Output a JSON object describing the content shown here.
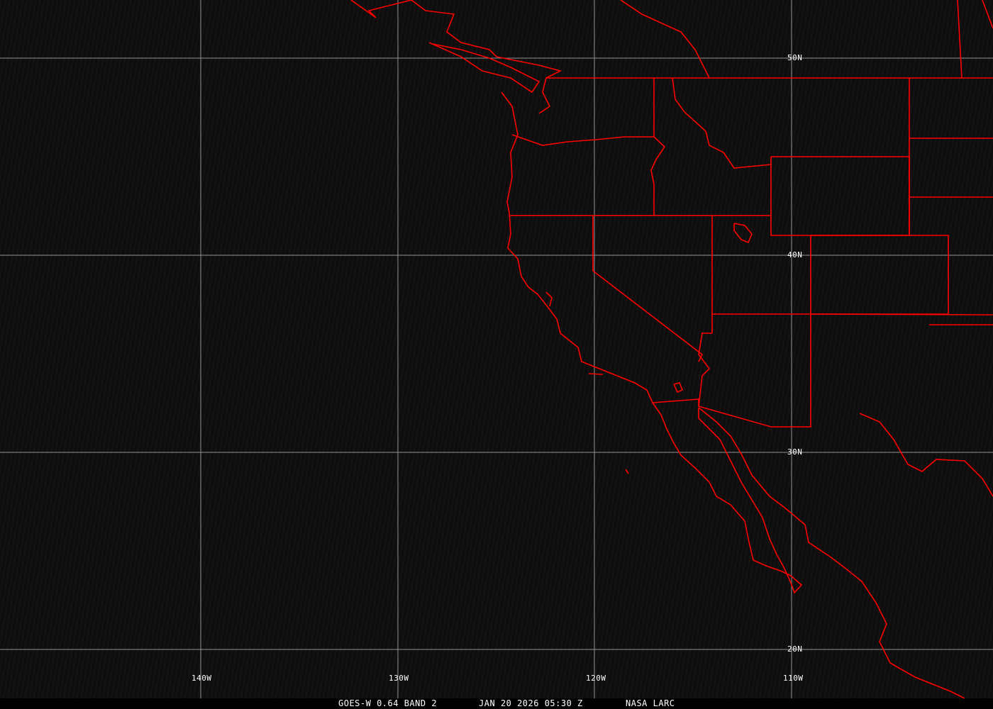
{
  "map": {
    "colors": {
      "background": "#111111",
      "grid": "#b4b4b4",
      "borders": "#ff0000",
      "text": "#ffffff"
    },
    "longitude_labels": [
      "140W",
      "130W",
      "120W",
      "110W"
    ],
    "latitude_labels": [
      "50N",
      "40N",
      "30N",
      "20N"
    ]
  },
  "caption": {
    "satellite": "GOES-W 0.64 BAND 2",
    "datetime": "JAN 20 2026 05:30 Z",
    "source": "NASA LARC"
  }
}
